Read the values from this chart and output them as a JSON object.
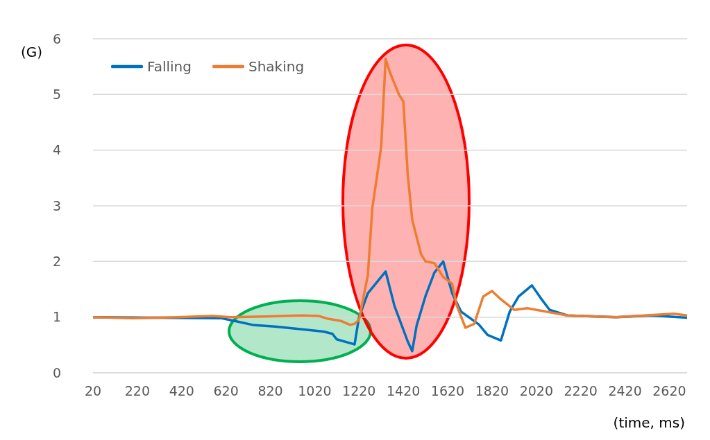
{
  "chart_data": {
    "type": "line",
    "xlabel": "(time, ms)",
    "ylabel": "(G)",
    "xlim": [
      20,
      2700
    ],
    "xticks": [
      20,
      220,
      420,
      620,
      820,
      1020,
      1220,
      1420,
      1620,
      1820,
      2020,
      2220,
      2420,
      2620
    ],
    "ylim": [
      0,
      6
    ],
    "yticks": [
      0,
      1,
      2,
      3,
      4,
      5,
      6
    ],
    "grid": "y",
    "legend": "top left",
    "series": [
      {
        "name": "Falling",
        "color": "#0070c0",
        "x": [
          20,
          600,
          660,
          740,
          840,
          940,
          1060,
          1100,
          1120,
          1200,
          1220,
          1260,
          1340,
          1380,
          1440,
          1460,
          1480,
          1520,
          1560,
          1600,
          1640,
          1680,
          1760,
          1800,
          1860,
          1900,
          1940,
          2000,
          2040,
          2080,
          2160,
          2380,
          2540,
          2700
        ],
        "values": [
          1.0,
          0.98,
          0.93,
          0.86,
          0.83,
          0.79,
          0.74,
          0.7,
          0.6,
          0.51,
          1.0,
          1.43,
          1.82,
          1.2,
          0.56,
          0.39,
          0.85,
          1.38,
          1.8,
          2.0,
          1.43,
          1.1,
          0.87,
          0.68,
          0.58,
          1.1,
          1.37,
          1.57,
          1.34,
          1.13,
          1.03,
          1.0,
          1.03,
          0.99
        ]
      },
      {
        "name": "Shaking",
        "color": "#ed7d31",
        "x": [
          20,
          200,
          400,
          560,
          640,
          800,
          960,
          1040,
          1080,
          1140,
          1180,
          1200,
          1220,
          1260,
          1280,
          1300,
          1320,
          1340,
          1360,
          1400,
          1420,
          1440,
          1460,
          1500,
          1520,
          1560,
          1600,
          1640,
          1660,
          1700,
          1740,
          1780,
          1820,
          1860,
          1920,
          1980,
          2160,
          2380,
          2640,
          2700
        ],
        "values": [
          1.0,
          0.98,
          1.0,
          1.02,
          1.0,
          1.01,
          1.03,
          1.02,
          0.97,
          0.93,
          0.86,
          0.88,
          0.95,
          1.76,
          2.96,
          3.5,
          4.06,
          5.64,
          5.39,
          5.0,
          4.87,
          3.55,
          2.75,
          2.13,
          2.0,
          1.97,
          1.72,
          1.6,
          1.22,
          0.81,
          0.88,
          1.37,
          1.47,
          1.32,
          1.13,
          1.16,
          1.03,
          1.0,
          1.06,
          1.03
        ]
      }
    ]
  }
}
